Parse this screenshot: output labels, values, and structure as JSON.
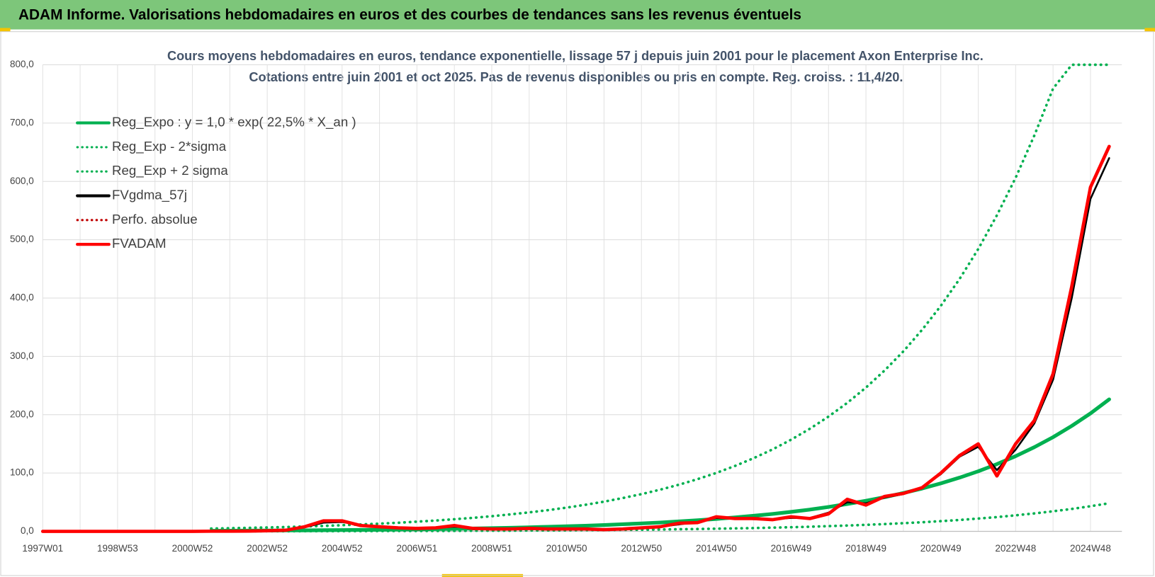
{
  "header": {
    "title": "ADAM Informe. Valorisations hebdomadaires en euros et des courbes de tendances sans les revenus éventuels"
  },
  "chart_data": {
    "type": "line",
    "title": "Cours moyens hebdomadaires en euros, tendance exponentielle, lissage 57 j depuis juin 2001 pour le placement Axon Enterprise Inc.",
    "subtitle": "Cotations entre juin 2001 et oct 2025. Pas de revenus disponibles ou pris en compte. Reg. croiss. : 11,4/20.",
    "categories": [
      "1997W01",
      null,
      null,
      null,
      "1998W53",
      null,
      null,
      null,
      "2000W52",
      null,
      null,
      null,
      "2002W52",
      null,
      null,
      null,
      "2004W52",
      null,
      null,
      null,
      "2006W51",
      null,
      null,
      null,
      "2008W51",
      null,
      null,
      null,
      "2010W50",
      null,
      null,
      null,
      "2012W50",
      null,
      null,
      null,
      "2014W50",
      null,
      null,
      null,
      "2016W49",
      null,
      null,
      null,
      "2018W49",
      null,
      null,
      null,
      "2020W49",
      null,
      null,
      null,
      "2022W48",
      null,
      null,
      null,
      "2024W48",
      null
    ],
    "ylim": [
      0,
      800
    ],
    "yticks": [
      {
        "value": 0,
        "label": "0,0"
      },
      {
        "value": 100,
        "label": "100,0"
      },
      {
        "value": 200,
        "label": "200,0"
      },
      {
        "value": 300,
        "label": "300,0"
      },
      {
        "value": 400,
        "label": "400,0"
      },
      {
        "value": 500,
        "label": "500,0"
      },
      {
        "value": 600,
        "label": "600,0"
      },
      {
        "value": 700,
        "label": "700,0"
      },
      {
        "value": 800,
        "label": "800,0"
      }
    ],
    "grid": true,
    "legend": "upper left",
    "series": [
      {
        "name": "Reg_Expo : y = 1,0 * exp( 22,5% *  X_an )",
        "color": "#00b050",
        "style": "solid",
        "values": [
          null,
          null,
          null,
          null,
          null,
          null,
          null,
          null,
          null,
          1.0,
          1.1,
          1.3,
          1.4,
          1.6,
          1.8,
          2.0,
          2.3,
          2.5,
          2.8,
          3.2,
          3.5,
          4.0,
          4.4,
          4.9,
          5.5,
          6.2,
          6.9,
          7.8,
          8.7,
          9.7,
          10.9,
          12.2,
          13.6,
          15.2,
          17.0,
          19.1,
          21.3,
          23.9,
          26.7,
          29.9,
          33.5,
          37.4,
          41.9,
          46.9,
          52.5,
          58.7,
          65.7,
          73.5,
          82.3,
          92.1,
          103.0,
          115.3,
          129.0,
          144.4,
          161.5,
          180.8,
          202.3,
          226.4
        ]
      },
      {
        "name": "Reg_Exp - 2*sigma",
        "color": "#00b050",
        "style": "dotted",
        "values": [
          null,
          null,
          null,
          null,
          null,
          null,
          null,
          null,
          null,
          0.2,
          0.2,
          0.3,
          0.3,
          0.3,
          0.4,
          0.4,
          0.5,
          0.5,
          0.6,
          0.7,
          0.8,
          0.8,
          0.9,
          1.1,
          1.2,
          1.3,
          1.5,
          1.7,
          1.8,
          2.1,
          2.3,
          2.6,
          2.9,
          3.2,
          3.6,
          4.1,
          4.5,
          5.1,
          5.7,
          6.4,
          7.1,
          8.0,
          8.9,
          10.0,
          11.2,
          12.5,
          14.0,
          15.7,
          17.5,
          19.6,
          21.9,
          24.5,
          27.5,
          30.8,
          34.4,
          38.5,
          43.1,
          48.2
        ]
      },
      {
        "name": "Reg_Exp + 2 sigma",
        "color": "#00b050",
        "style": "dotted",
        "values": [
          null,
          null,
          null,
          null,
          null,
          null,
          null,
          null,
          null,
          4.8,
          5.4,
          6.0,
          6.7,
          7.5,
          8.5,
          9.4,
          10.6,
          11.8,
          13.3,
          14.8,
          16.6,
          18.6,
          20.8,
          23.2,
          26.0,
          29.1,
          32.5,
          36.4,
          40.7,
          45.6,
          51.0,
          57.1,
          63.9,
          71.5,
          80.0,
          89.6,
          100.2,
          112.2,
          125.5,
          140.5,
          157.2,
          175.9,
          196.8,
          220.3,
          246.5,
          275.9,
          308.7,
          345.5,
          386.6,
          432.6,
          484.1,
          541.9,
          606.3,
          678.7,
          759.1,
          800,
          800,
          800
        ]
      },
      {
        "name": "FVgdma_57j",
        "color": "#000000",
        "style": "solid",
        "values": [
          0,
          0,
          0,
          0,
          0,
          0,
          0,
          0,
          0,
          0.2,
          0.3,
          0.5,
          1,
          2,
          7,
          15,
          16,
          11,
          8,
          6,
          6,
          6,
          8,
          6,
          4,
          4,
          4,
          4,
          4,
          4,
          3,
          4,
          6,
          8,
          12,
          16,
          23,
          22,
          21,
          21,
          23,
          23,
          32,
          50,
          48,
          58,
          64,
          76,
          98,
          128,
          145,
          105,
          140,
          185,
          260,
          400,
          570,
          640
        ]
      },
      {
        "name": "Perfo. absolue",
        "color": "#c00000",
        "style": "dotted",
        "values": [
          0,
          0,
          0,
          0,
          0,
          0,
          0,
          0,
          0,
          0.2,
          0.3,
          0.5,
          1,
          2,
          8,
          18,
          18,
          10,
          8,
          6,
          5,
          6,
          10,
          5,
          4,
          4,
          5,
          4,
          4,
          4,
          3,
          4,
          6,
          8,
          14,
          15,
          25,
          22,
          22,
          20,
          25,
          22,
          30,
          55,
          45,
          60,
          65,
          75,
          100,
          130,
          150,
          95,
          150,
          190,
          270,
          420,
          590,
          660
        ]
      },
      {
        "name": "FVADAM",
        "color": "#ff0000",
        "style": "solid",
        "values": [
          0,
          0,
          0,
          0,
          0,
          0,
          0,
          0,
          0,
          0.2,
          0.3,
          0.5,
          1,
          2,
          8,
          18,
          18,
          10,
          8,
          6,
          5,
          6,
          10,
          5,
          4,
          4,
          5,
          4,
          4,
          4,
          3,
          4,
          6,
          8,
          14,
          15,
          25,
          22,
          22,
          20,
          25,
          22,
          30,
          55,
          45,
          60,
          65,
          75,
          100,
          130,
          150,
          95,
          150,
          190,
          270,
          420,
          590,
          660
        ]
      }
    ]
  }
}
